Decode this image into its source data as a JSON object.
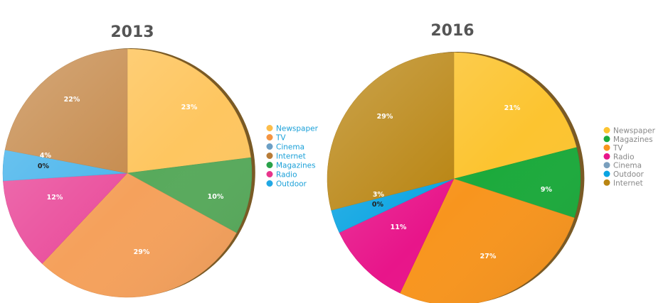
{
  "chart_data": [
    {
      "type": "pie",
      "title": "2013",
      "legend_position": "right",
      "legend_text_color": "#1aa0d8",
      "slices": [
        {
          "label": "Newspaper",
          "value": 23,
          "value_label": "23%",
          "color": "#fec660"
        },
        {
          "label": "Magazines",
          "value": 10,
          "value_label": "10%",
          "color": "#58aa5c"
        },
        {
          "label": "TV",
          "value": 29,
          "value_label": "29%",
          "color": "#f5a15c"
        },
        {
          "label": "Radio",
          "value": 12,
          "value_label": "12%",
          "color": "#ea519e"
        },
        {
          "label": "Cinema",
          "value": 0,
          "value_label": "0%",
          "color": "#6c9fc5"
        },
        {
          "label": "Outdoor",
          "value": 4,
          "value_label": "4%",
          "color": "#4cb6ec"
        },
        {
          "label": "Internet",
          "value": 22,
          "value_label": "22%",
          "color": "#c68b4d"
        }
      ],
      "legend": [
        {
          "label": "Newspaper",
          "color": "#fcbd4a"
        },
        {
          "label": "TV",
          "color": "#f49441"
        },
        {
          "label": "Cinema",
          "color": "#6c9fc5"
        },
        {
          "label": "Internet",
          "color": "#b87c38"
        },
        {
          "label": "Magazines",
          "color": "#2aa24a"
        },
        {
          "label": "Radio",
          "color": "#e8358c"
        },
        {
          "label": "Outdoor",
          "color": "#21a8e4"
        }
      ]
    },
    {
      "type": "pie",
      "title": "2016",
      "legend_position": "right",
      "legend_text_color": "#888888",
      "slices": [
        {
          "label": "Newspaper",
          "value": 21,
          "value_label": "21%",
          "color": "#fcc430"
        },
        {
          "label": "Magazines",
          "value": 9,
          "value_label": "9%",
          "color": "#1caa3c"
        },
        {
          "label": "TV",
          "value": 27,
          "value_label": "27%",
          "color": "#f8951e"
        },
        {
          "label": "Radio",
          "value": 11,
          "value_label": "11%",
          "color": "#e8158a"
        },
        {
          "label": "Cinema",
          "value": 0,
          "value_label": "0%",
          "color": "#7a9fbd"
        },
        {
          "label": "Outdoor",
          "value": 3,
          "value_label": "3%",
          "color": "#0aa4e2"
        },
        {
          "label": "Internet",
          "value": 29,
          "value_label": "29%",
          "color": "#b98512"
        }
      ],
      "legend": [
        {
          "label": "Newspaper",
          "color": "#fcc430"
        },
        {
          "label": "Magazines",
          "color": "#1caa3c"
        },
        {
          "label": "TV",
          "color": "#f8951e"
        },
        {
          "label": "Radio",
          "color": "#e8158a"
        },
        {
          "label": "Cinema",
          "color": "#7a9fbd"
        },
        {
          "label": "Outdoor",
          "color": "#0aa4e2"
        },
        {
          "label": "Internet",
          "color": "#b98512"
        }
      ]
    }
  ]
}
